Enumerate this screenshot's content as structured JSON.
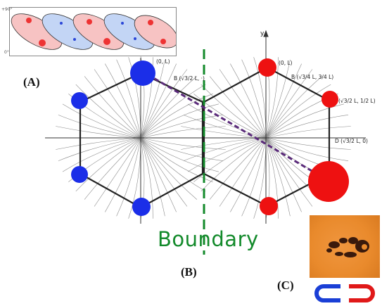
{
  "panels": {
    "a": "(A)",
    "b": "(B)",
    "c": "(C)"
  },
  "boundary_label": "Boundary",
  "inset_top": {
    "tick_top": "+90°",
    "tick_bottom": "0°"
  },
  "point_labels": {
    "left_top": "(0, L)",
    "left_b": "B (√3/2 L, ·)",
    "right_top": "(0, L)",
    "right_b": "B (√3/4 L, 3/4 L)",
    "right_c": "(√3/2 L, 1/2 L)",
    "right_d": "D (√3/2 L, 0)",
    "axis_y": "y"
  },
  "colors": {
    "blue_charge": "#1b2ee8",
    "red_charge": "#ee1111",
    "boundary": "#138a2b",
    "dashed_line": "#5a2a7a",
    "hexagon": "#222222",
    "magnet_blue": "#1a3fd6",
    "magnet_red": "#e01919"
  }
}
